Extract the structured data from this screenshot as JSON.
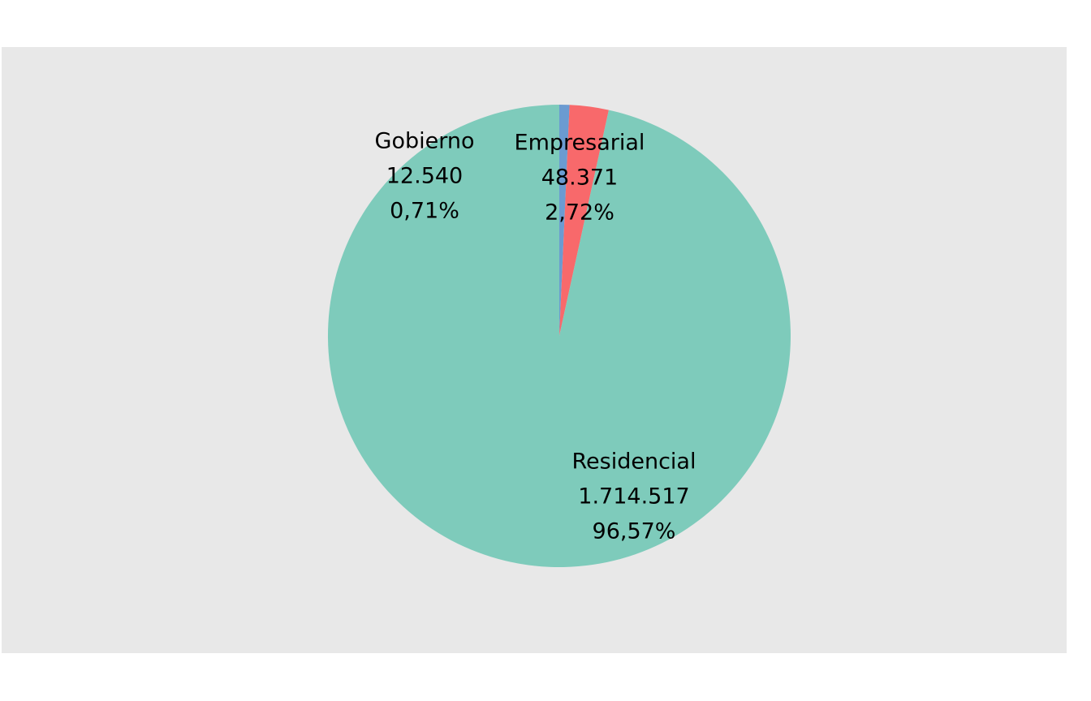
{
  "chart_data": {
    "type": "pie",
    "title": "",
    "start_angle_deg": 0,
    "direction": "clockwise",
    "order": [
      "Gobierno",
      "Empresarial",
      "Residencial"
    ],
    "slices": [
      {
        "category": "Empresarial",
        "value": 48371,
        "value_label": "48.371",
        "percent_label": "2,72%",
        "color": "#f8696b"
      },
      {
        "category": "Gobierno",
        "value": 12540,
        "value_label": "12.540",
        "percent_label": "0,71%",
        "color": "#6b9bd1"
      },
      {
        "category": "Residencial",
        "value": 1714517,
        "value_label": "1.714.517",
        "percent_label": "96,57%",
        "color": "#7ecbbb"
      }
    ],
    "background_color": "#e8e8e8",
    "legend": "none"
  }
}
